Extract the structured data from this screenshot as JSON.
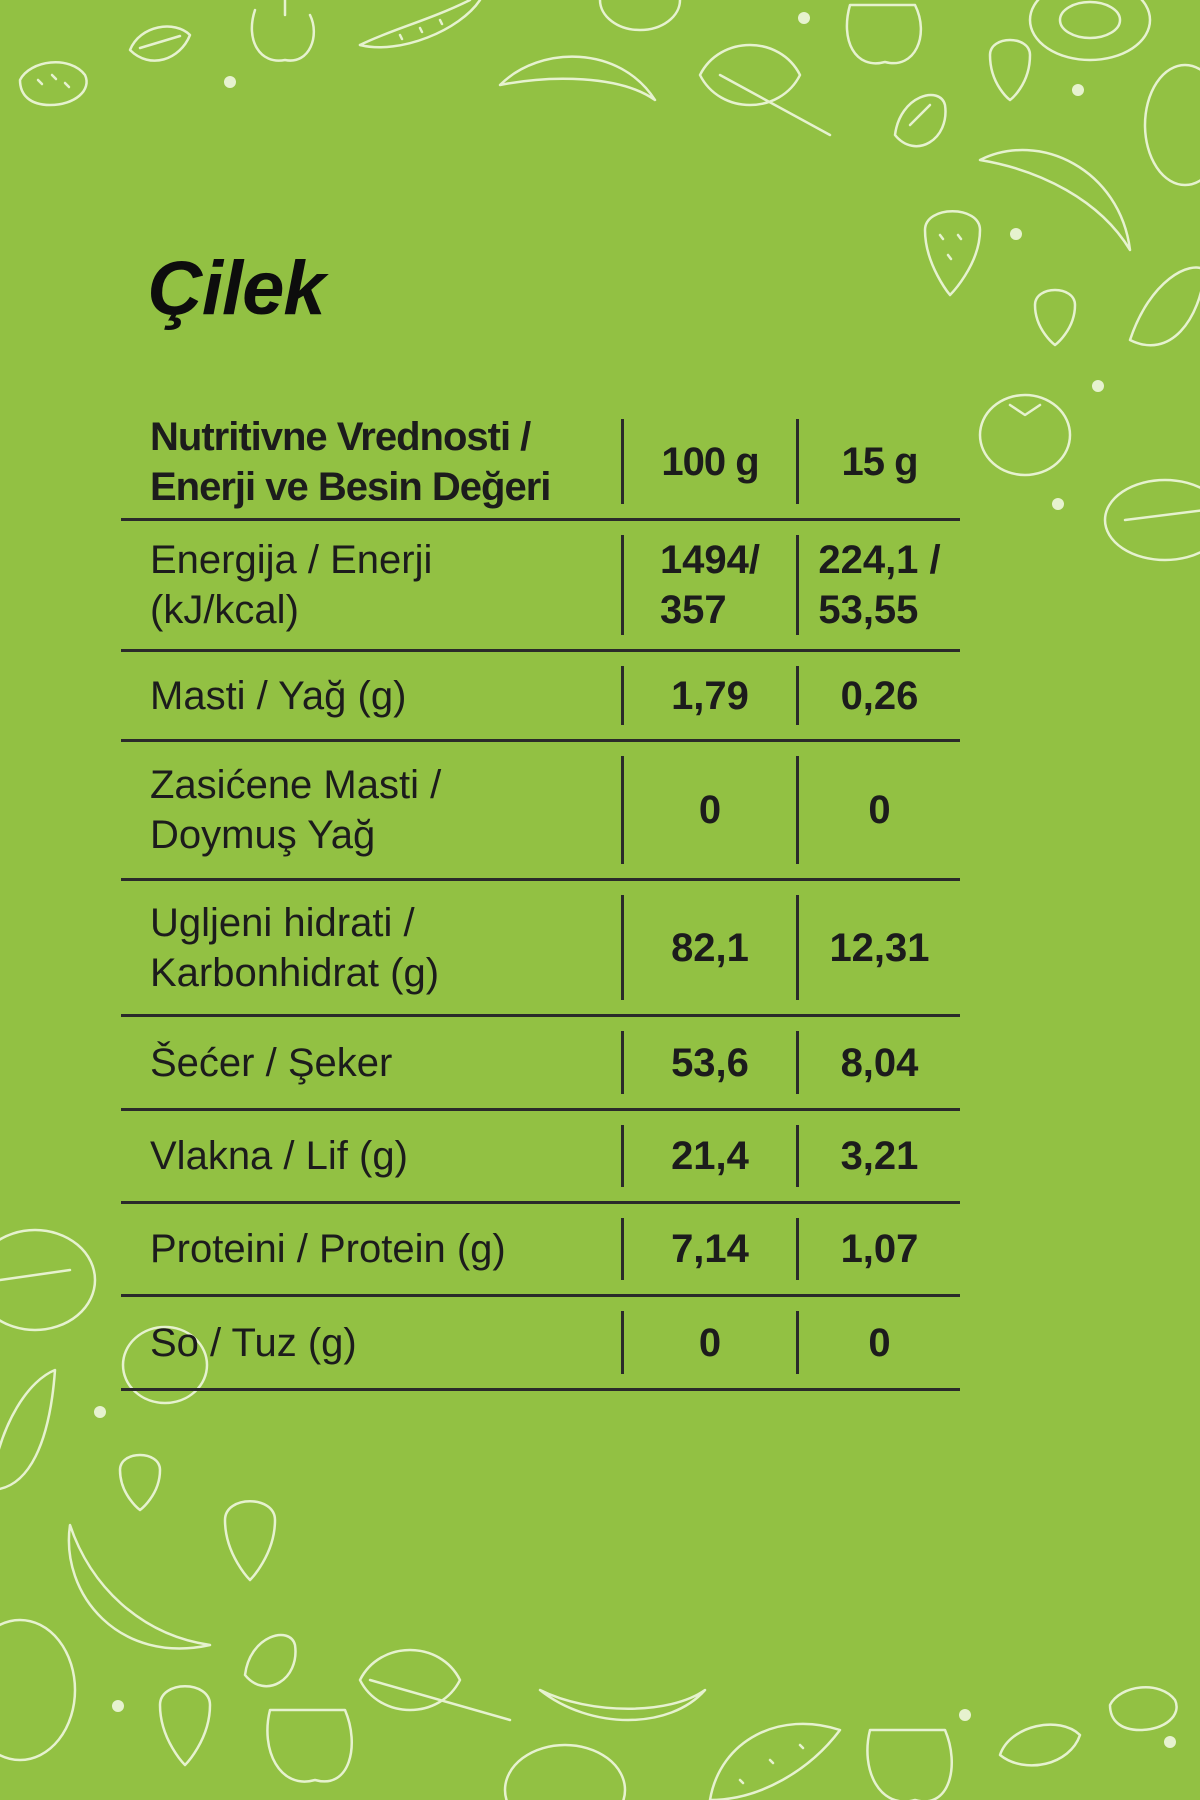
{
  "title": "Çilek",
  "table": {
    "header": {
      "label": "Nutritivne Vrednosti /\nEnerji ve Besin Değeri",
      "col1": "100 g",
      "col2": "15 g"
    },
    "rows": [
      {
        "label": "Energija / Enerji\n(kJ/kcal)",
        "v100": "1494/\n357",
        "v15": "224,1 /\n53,55"
      },
      {
        "label": "Masti / Yağ (g)",
        "v100": "1,79",
        "v15": "0,26"
      },
      {
        "label": "Zasićene Masti /\nDoymuş Yağ",
        "v100": "0",
        "v15": "0"
      },
      {
        "label": "Ugljeni hidrati /\nKarbonhidrat (g)",
        "v100": "82,1",
        "v15": "12,31"
      },
      {
        "label": "Šećer / Şeker",
        "v100": "53,6",
        "v15": "8,04"
      },
      {
        "label": "Vlakna / Lif (g)",
        "v100": "21,4",
        "v15": "3,21"
      },
      {
        "label": "Proteini / Protein (g)",
        "v100": "7,14",
        "v15": "1,07"
      },
      {
        "label": "So / Tuz (g)",
        "v100": "0",
        "v15": "0"
      }
    ]
  },
  "colors": {
    "background": "#92c143",
    "doodle": "#e6f2cf",
    "text": "#1c1c1c"
  },
  "icons": [
    "strawberry-icon",
    "banana-icon",
    "watermelon-icon",
    "lemon-icon",
    "apple-icon",
    "tomato-icon",
    "spinach-icon",
    "kiwi-icon"
  ]
}
